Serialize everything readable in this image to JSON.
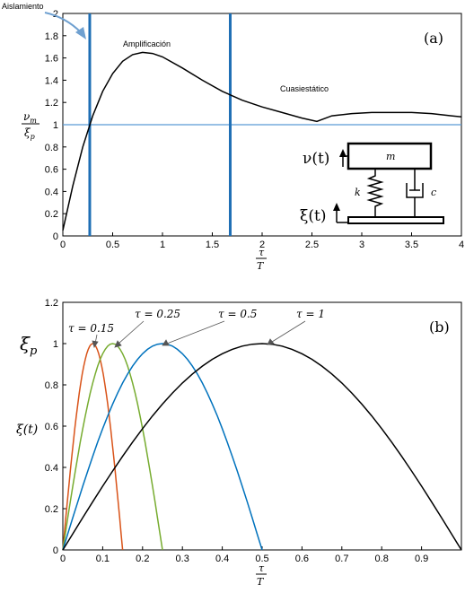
{
  "chart_data": [
    {
      "type": "line",
      "panel_label": "(a)",
      "xlabel": "τ / T",
      "ylabel": "ν_m / ξ_p",
      "xlim": [
        0,
        4
      ],
      "ylim": [
        0,
        2
      ],
      "xticks": [
        "0",
        "0.5",
        "1",
        "1.5",
        "2",
        "2.5",
        "3",
        "3.5",
        "4"
      ],
      "yticks": [
        "0",
        "0.2",
        "0.4",
        "0.6",
        "0.8",
        "1",
        "1.2",
        "1.4",
        "1.6",
        "1.8",
        "2"
      ],
      "series": [
        {
          "color": "#000000",
          "x": [
            0,
            0.1,
            0.2,
            0.3,
            0.4,
            0.5,
            0.6,
            0.7,
            0.8,
            0.9,
            1.0,
            1.2,
            1.4,
            1.6,
            1.8,
            2.0,
            2.2,
            2.4,
            2.55,
            2.7,
            2.9,
            3.1,
            3.3,
            3.5,
            3.7,
            3.9,
            4.0
          ],
          "values": [
            0.05,
            0.45,
            0.8,
            1.08,
            1.3,
            1.46,
            1.57,
            1.63,
            1.65,
            1.64,
            1.61,
            1.51,
            1.4,
            1.3,
            1.22,
            1.16,
            1.11,
            1.06,
            1.03,
            1.08,
            1.1,
            1.11,
            1.11,
            1.11,
            1.1,
            1.08,
            1.07
          ]
        }
      ],
      "reference_line": {
        "y": 1,
        "color": "#5b9bd5"
      },
      "vertical_markers": {
        "x": [
          0.27,
          1.68
        ],
        "color": "#1f6fb5"
      },
      "annotations": {
        "isolation": "Aislamiento",
        "amplification": "Amplificación",
        "quasistatic": "Cuasiestático"
      },
      "inset": {
        "response": "ν(t)",
        "mass": "m",
        "spring": "k",
        "damper": "c",
        "base": "ξ(t)"
      }
    },
    {
      "type": "line",
      "panel_label": "(b)",
      "xlabel": "τ / T",
      "ylabel": "ξ(t)",
      "ypeak_label": "ξp",
      "xlim": [
        0,
        1
      ],
      "ylim": [
        0,
        1.2
      ],
      "xticks": [
        "0",
        "0.1",
        "0.2",
        "0.3",
        "0.4",
        "0.5",
        "0.6",
        "0.7",
        "0.8",
        "0.9"
      ],
      "yticks": [
        "0",
        "0.2",
        "0.4",
        "0.6",
        "0.8",
        "1",
        "1.2"
      ],
      "series": [
        {
          "name": "τ = 0.15",
          "color": "#d95319",
          "tau": 0.15
        },
        {
          "name": "τ = 0.25",
          "color": "#77ac30",
          "tau": 0.25
        },
        {
          "name": "τ = 0.5",
          "color": "#0072bd",
          "tau": 0.5
        },
        {
          "name": "τ = 1",
          "color": "#000000",
          "tau": 1
        }
      ]
    }
  ]
}
